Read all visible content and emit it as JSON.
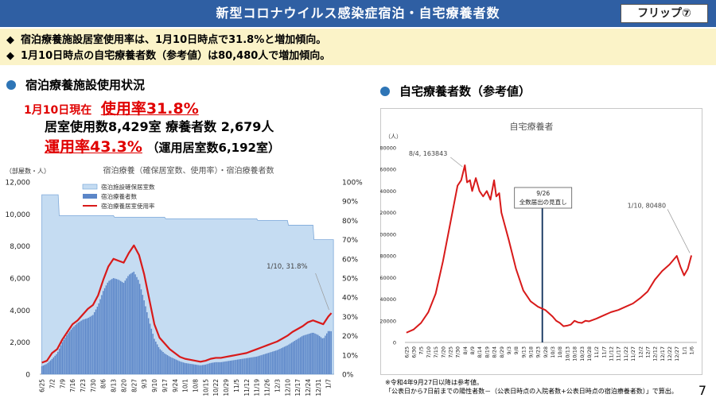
{
  "header": {
    "title": "新型コロナウイルス感染症宿泊・自宅療養者数",
    "flip": "フリップ⑦"
  },
  "bullets": [
    {
      "marker": "◆",
      "text": "宿泊療養施設居室使用率は、1月10日時点で31.8%と増加傾向。"
    },
    {
      "marker": "◆",
      "text": "1月10日時点の自宅療養者数（参考値）は80,480人で増加傾向。"
    }
  ],
  "left_section": {
    "title": "宿泊療養施設使用状況",
    "date_label": "1月10日現在",
    "usage_rate": "使用率31.8%",
    "rooms_line": "居室使用数8,429室 療養者数  2,679人",
    "operation_rate": "運用率43.3%",
    "operation_note": "（運用居室数6,192室）"
  },
  "right_section": {
    "title": "自宅療養者数（参考値）"
  },
  "footnote": {
    "line1": "※令和4年9月27日以降は参考値。",
    "line2": "「公表日から7日前までの陽性者数－（公表日時点の入院者数+公表日時点の宿泊療養者数）」で算出。"
  },
  "page_number": "7",
  "colors": {
    "header": "#2f5fa3",
    "bullets_bg": "#fbf3c8",
    "accent_red": "#e00000",
    "bar_blue": "#5b86c8",
    "capacity_fill": "#c5dcf2",
    "line_red": "#d81a1a"
  },
  "chart_data": [
    {
      "type": "bar",
      "title": "宿泊療養（確保居室数、使用率）・宿泊療養者数",
      "ylabel": "（部屋数・人）",
      "ylim": [
        0,
        12000
      ],
      "y_ticks": [
        "0",
        "2,000",
        "4,000",
        "6,000",
        "8,000",
        "10,000",
        "12,000"
      ],
      "y2lim": [
        0,
        100
      ],
      "y2_ticks": [
        "0%",
        "10%",
        "20%",
        "30%",
        "40%",
        "50%",
        "60%",
        "70%",
        "80%",
        "90%",
        "100%"
      ],
      "categories": [
        "6/25",
        "7/2",
        "7/9",
        "7/16",
        "7/23",
        "7/30",
        "8/6",
        "8/13",
        "8/20",
        "8/27",
        "9/3",
        "9/10",
        "9/17",
        "9/24",
        "10/1",
        "10/8",
        "10/15",
        "10/22",
        "10/29",
        "11/5",
        "11/12",
        "11/19",
        "11/26",
        "12/3",
        "12/10",
        "12/17",
        "12/24",
        "12/31",
        "1/7"
      ],
      "legend": [
        "宿泊施設確保居室数",
        "宿泊療養者数",
        "宿泊療養居室使用率"
      ],
      "series": [
        {
          "name": "宿泊施設確保居室数",
          "kind": "area",
          "points": [
            [
              0,
              11200
            ],
            [
              1.6,
              11200
            ],
            [
              1.7,
              9900
            ],
            [
              7,
              9900
            ],
            [
              7.1,
              9800
            ],
            [
              12,
              9800
            ],
            [
              12.1,
              9700
            ],
            [
              21,
              9700
            ],
            [
              21.1,
              9600
            ],
            [
              24,
              9600
            ],
            [
              24.1,
              9300
            ],
            [
              26.5,
              9300
            ],
            [
              26.6,
              8400
            ],
            [
              28.5,
              8400
            ]
          ]
        },
        {
          "name": "宿泊療養者数",
          "kind": "bar",
          "points": [
            [
              0,
              500
            ],
            [
              0.5,
              650
            ],
            [
              1,
              950
            ],
            [
              1.5,
              1300
            ],
            [
              2,
              2000
            ],
            [
              2.5,
              2500
            ],
            [
              3,
              2900
            ],
            [
              3.5,
              3200
            ],
            [
              4,
              3400
            ],
            [
              4.5,
              3500
            ],
            [
              5,
              3700
            ],
            [
              5.5,
              4300
            ],
            [
              6,
              5200
            ],
            [
              6.5,
              5800
            ],
            [
              7,
              6000
            ],
            [
              7.5,
              5900
            ],
            [
              8,
              5700
            ],
            [
              8.5,
              6200
            ],
            [
              9,
              6400
            ],
            [
              9.5,
              5800
            ],
            [
              10,
              4600
            ],
            [
              10.5,
              3300
            ],
            [
              11,
              2200
            ],
            [
              11.5,
              1600
            ],
            [
              12,
              1300
            ],
            [
              12.5,
              1100
            ],
            [
              13,
              950
            ],
            [
              13.5,
              800
            ],
            [
              14,
              700
            ],
            [
              14.5,
              650
            ],
            [
              15,
              600
            ],
            [
              15.5,
              550
            ],
            [
              16,
              600
            ],
            [
              16.5,
              700
            ],
            [
              17,
              750
            ],
            [
              17.5,
              750
            ],
            [
              18,
              800
            ],
            [
              18.5,
              850
            ],
            [
              19,
              900
            ],
            [
              19.5,
              950
            ],
            [
              20,
              1000
            ],
            [
              20.5,
              1050
            ],
            [
              21,
              1100
            ],
            [
              21.5,
              1200
            ],
            [
              22,
              1300
            ],
            [
              22.5,
              1400
            ],
            [
              23,
              1500
            ],
            [
              23.5,
              1650
            ],
            [
              24,
              1800
            ],
            [
              24.5,
              2000
            ],
            [
              25,
              2200
            ],
            [
              25.5,
              2400
            ],
            [
              26,
              2500
            ],
            [
              26.5,
              2600
            ],
            [
              27,
              2450
            ],
            [
              27.5,
              2200
            ],
            [
              28,
              2700
            ],
            [
              28.3,
              2679
            ]
          ]
        },
        {
          "name": "宿泊療養居室使用率",
          "kind": "line",
          "points": [
            [
              0,
              6
            ],
            [
              0.5,
              7
            ],
            [
              1,
              11
            ],
            [
              1.5,
              13
            ],
            [
              2,
              18
            ],
            [
              2.5,
              22
            ],
            [
              3,
              26
            ],
            [
              3.5,
              28
            ],
            [
              4,
              31
            ],
            [
              4.5,
              34
            ],
            [
              5,
              36
            ],
            [
              5.5,
              41
            ],
            [
              6,
              49
            ],
            [
              6.5,
              56
            ],
            [
              7,
              60
            ],
            [
              7.5,
              59
            ],
            [
              8,
              58
            ],
            [
              8.5,
              63
            ],
            [
              9,
              67
            ],
            [
              9.5,
              62
            ],
            [
              10,
              52
            ],
            [
              10.5,
              39
            ],
            [
              11,
              26
            ],
            [
              11.5,
              19
            ],
            [
              12,
              16
            ],
            [
              12.5,
              13
            ],
            [
              13,
              11
            ],
            [
              13.5,
              9
            ],
            [
              14,
              8
            ],
            [
              14.5,
              7.5
            ],
            [
              15,
              7
            ],
            [
              15.5,
              6.5
            ],
            [
              16,
              7
            ],
            [
              16.5,
              8
            ],
            [
              17,
              8.5
            ],
            [
              17.5,
              8.5
            ],
            [
              18,
              9
            ],
            [
              18.5,
              9.5
            ],
            [
              19,
              10
            ],
            [
              19.5,
              10.5
            ],
            [
              20,
              11
            ],
            [
              20.5,
              12
            ],
            [
              21,
              13
            ],
            [
              21.5,
              14
            ],
            [
              22,
              15
            ],
            [
              22.5,
              16
            ],
            [
              23,
              17
            ],
            [
              23.5,
              18.5
            ],
            [
              24,
              20
            ],
            [
              24.5,
              22
            ],
            [
              25,
              23.5
            ],
            [
              25.5,
              25
            ],
            [
              26,
              27
            ],
            [
              26.5,
              28
            ],
            [
              27,
              27
            ],
            [
              27.5,
              26
            ],
            [
              28,
              30
            ],
            [
              28.3,
              31.8
            ]
          ]
        }
      ],
      "annotations": [
        {
          "text": "1/10, 31.8%",
          "x": 28.3,
          "y": 31.8,
          "axis": "y2"
        }
      ]
    },
    {
      "type": "line",
      "title": "自宅療養者",
      "ylabel": "（人）",
      "ylim": [
        0,
        180000
      ],
      "y_ticks": [
        "0",
        "20000",
        "40000",
        "60000",
        "80000",
        "100000",
        "120000",
        "140000",
        "160000",
        "180000"
      ],
      "categories": [
        "6/25",
        "6/30",
        "7/5",
        "7/10",
        "7/15",
        "7/20",
        "7/25",
        "7/30",
        "8/4",
        "8/9",
        "8/14",
        "8/19",
        "8/24",
        "8/29",
        "9/3",
        "9/8",
        "9/13",
        "9/18",
        "9/23",
        "9/28",
        "10/3",
        "10/8",
        "10/13",
        "10/18",
        "10/23",
        "10/28",
        "11/2",
        "11/7",
        "11/12",
        "11/17",
        "11/22",
        "11/27",
        "12/2",
        "12/7",
        "12/12",
        "12/17",
        "12/22",
        "12/27",
        "1/1",
        "1/6"
      ],
      "series": [
        {
          "name": "自宅療養者",
          "points": [
            [
              0,
              9000
            ],
            [
              1,
              12000
            ],
            [
              2,
              18000
            ],
            [
              3,
              28000
            ],
            [
              4,
              45000
            ],
            [
              5,
              75000
            ],
            [
              6,
              110000
            ],
            [
              7,
              145000
            ],
            [
              7.5,
              150000
            ],
            [
              8,
              163843
            ],
            [
              8.3,
              148000
            ],
            [
              8.7,
              150000
            ],
            [
              9,
              140000
            ],
            [
              9.5,
              152000
            ],
            [
              10,
              140000
            ],
            [
              10.5,
              135000
            ],
            [
              11,
              140000
            ],
            [
              11.5,
              132000
            ],
            [
              12,
              150000
            ],
            [
              12.3,
              135000
            ],
            [
              12.7,
              138000
            ],
            [
              13,
              120000
            ],
            [
              14,
              95000
            ],
            [
              15,
              68000
            ],
            [
              16,
              48000
            ],
            [
              17,
              38000
            ],
            [
              18,
              33000
            ],
            [
              19,
              30000
            ],
            [
              20,
              24000
            ],
            [
              20.5,
              20000
            ],
            [
              21,
              18000
            ],
            [
              21.5,
              15000
            ],
            [
              22,
              15500
            ],
            [
              22.5,
              16500
            ],
            [
              23,
              20000
            ],
            [
              23.5,
              18500
            ],
            [
              24,
              18000
            ],
            [
              24.5,
              20000
            ],
            [
              25,
              19500
            ],
            [
              26,
              22000
            ],
            [
              27,
              25000
            ],
            [
              28,
              28000
            ],
            [
              29,
              30000
            ],
            [
              30,
              33000
            ],
            [
              31,
              36000
            ],
            [
              32,
              41000
            ],
            [
              33,
              47000
            ],
            [
              34,
              58000
            ],
            [
              35,
              66000
            ],
            [
              36,
              72000
            ],
            [
              37,
              80000
            ],
            [
              37.5,
              70000
            ],
            [
              38,
              62000
            ],
            [
              38.5,
              68000
            ],
            [
              39,
              80480
            ]
          ]
        }
      ],
      "annotations": [
        {
          "text": "8/4, 163843",
          "x": 8,
          "y": 163843
        },
        {
          "text": "1/10, 80480",
          "x": 39,
          "y": 80480
        },
        {
          "text": "9/26",
          "x": 18.6,
          "y": 0
        },
        {
          "text": "全数届出の見直し",
          "x": 18.6,
          "y": 0
        }
      ]
    }
  ]
}
